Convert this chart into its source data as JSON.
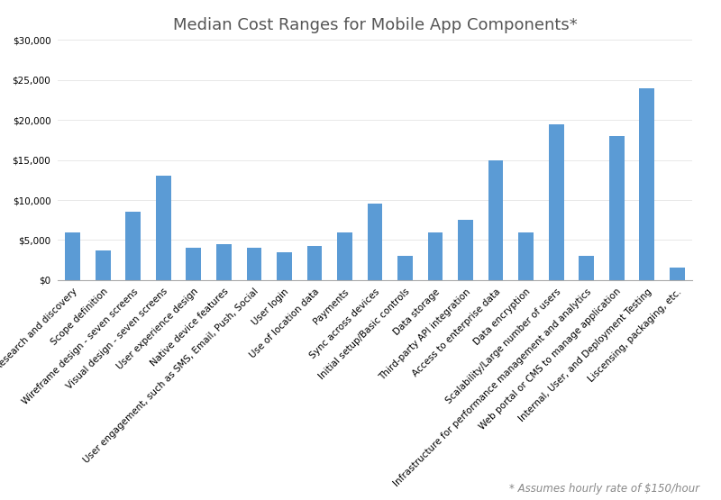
{
  "title": "Median Cost Ranges for Mobile App Components*",
  "footnote": "* Assumes hourly rate of $150/hour",
  "bar_color": "#5B9BD5",
  "background_color": "#FFFFFF",
  "categories": [
    "Research and discovery",
    "Scope definition",
    "Wireframe design - seven screens",
    "Visual design - seven screens",
    "User experience design",
    "Native device features",
    "User engagement, such as SMS, Email, Push, Social",
    "User login",
    "Use of location data",
    "Payments",
    "Sync across devices",
    "Initial setup/Basic controls",
    "Data storage",
    "Third-party API integration",
    "Access to enterprise data",
    "Data encryption",
    "Scalability/Large number of users",
    "Infrastructure for performance management and analytics",
    "Web portal or CMS to manage application",
    "Internal, User, and Deployment Testing",
    "Liscensing, packaging, etc."
  ],
  "values": [
    6000,
    3750,
    8500,
    13000,
    4000,
    4500,
    4000,
    3500,
    4250,
    6000,
    9500,
    3000,
    6000,
    7500,
    15000,
    6000,
    19500,
    3000,
    18000,
    24000,
    1500
  ],
  "ylim": [
    0,
    30000
  ],
  "yticks": [
    0,
    5000,
    10000,
    15000,
    20000,
    25000,
    30000
  ],
  "title_fontsize": 13,
  "tick_fontsize": 7.5,
  "footnote_fontsize": 8.5,
  "bar_width": 0.5
}
